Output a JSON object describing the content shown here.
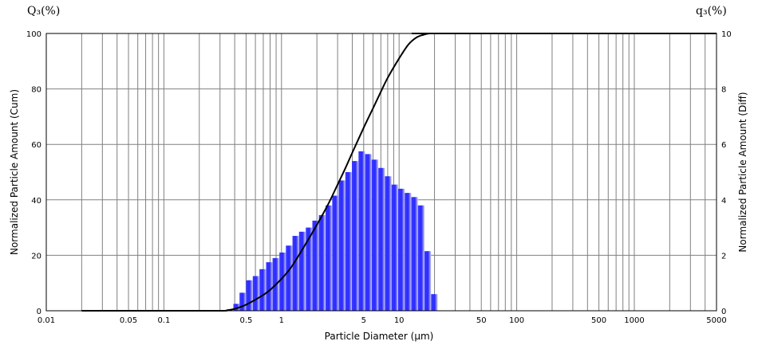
{
  "chart_data": {
    "type": "bar",
    "title": "",
    "xlabel": "Particle Diameter (μm)",
    "ylabel_left": "Normalized Particle Amount (Cum)",
    "ylabel_right": "Normalized Particle Amount (Diff)",
    "corner_left": "Q₃(%)",
    "corner_right": "q₃(%)",
    "x_scale": "log",
    "xlim": [
      0.01,
      5000
    ],
    "ylim_left": [
      0,
      100
    ],
    "ylim_right": [
      0,
      10
    ],
    "grid": true,
    "x_tick_labels": [
      {
        "value": 0.01,
        "label": "0.01"
      },
      {
        "value": 0.05,
        "label": "0.05"
      },
      {
        "value": 0.1,
        "label": "0.1"
      },
      {
        "value": 0.5,
        "label": "0.5"
      },
      {
        "value": 1,
        "label": "1"
      },
      {
        "value": 5,
        "label": "5"
      },
      {
        "value": 10,
        "label": "10"
      },
      {
        "value": 50,
        "label": "50"
      },
      {
        "value": 100,
        "label": "100"
      },
      {
        "value": 500,
        "label": "500"
      },
      {
        "value": 1000,
        "label": "1000"
      },
      {
        "value": 5000,
        "label": "5000"
      }
    ],
    "y_left_ticks": [
      0,
      20,
      40,
      60,
      80,
      100
    ],
    "y_right_ticks": [
      0,
      2,
      4,
      6,
      8,
      10
    ],
    "bar_color": "#2a2aff",
    "curve_color": "#000000",
    "histogram": {
      "diameter": [
        0.34,
        0.39,
        0.44,
        0.5,
        0.57,
        0.65,
        0.74,
        0.84,
        0.96,
        1.09,
        1.24,
        1.41,
        1.61,
        1.83,
        2.08,
        2.37,
        2.7,
        3.07,
        3.49,
        3.97,
        4.52,
        5.14,
        5.85,
        6.66,
        7.58,
        8.62,
        9.81,
        11.16,
        12.7,
        14.45,
        16.44,
        18.71
      ],
      "q3": [
        0.05,
        0.25,
        0.65,
        1.1,
        1.25,
        1.5,
        1.75,
        1.9,
        2.1,
        2.35,
        2.7,
        2.85,
        3.0,
        3.25,
        3.45,
        3.8,
        4.15,
        4.7,
        5.0,
        5.4,
        5.75,
        5.65,
        5.45,
        5.15,
        4.85,
        4.55,
        4.4,
        4.25,
        4.1,
        3.8,
        2.15,
        0.6
      ]
    },
    "cumulative": {
      "diameter": [
        0.02,
        0.1,
        0.3,
        0.35,
        0.4,
        0.45,
        0.5,
        0.6,
        0.7,
        0.8,
        1.0,
        1.2,
        1.5,
        2.0,
        2.5,
        3.0,
        3.5,
        4.0,
        5.0,
        6.0,
        7.0,
        8.0,
        10,
        12,
        14,
        16,
        18,
        20,
        5000
      ],
      "Q3": [
        0.0,
        0.0,
        0.0,
        0.2,
        0.7,
        1.4,
        2.2,
        4.0,
        5.7,
        7.5,
        11.5,
        15.5,
        22.0,
        31.0,
        38.5,
        45.5,
        51.5,
        57.0,
        66.0,
        73.0,
        79.0,
        84.0,
        91.0,
        96.0,
        98.5,
        99.5,
        100.0,
        100.0,
        100.0
      ]
    }
  }
}
